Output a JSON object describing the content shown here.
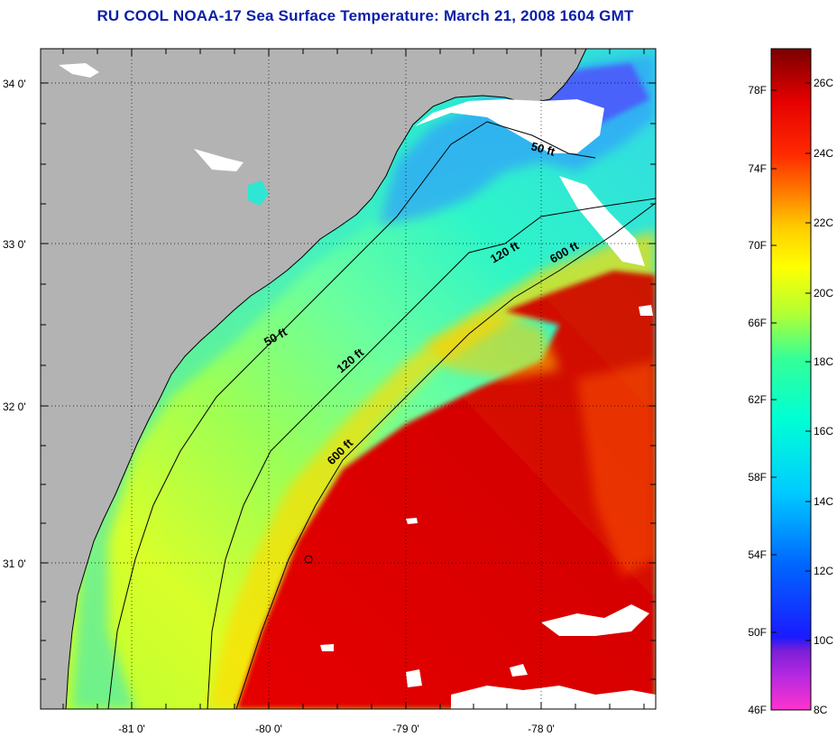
{
  "title": "RU COOL  NOAA-17  Sea Surface Temperature:  March 21, 2008 1604 GMT",
  "map": {
    "latitude_labels": [
      "34 0'",
      "33 0'",
      "32 0'",
      "31 0'"
    ],
    "longitude_labels": [
      "-81 0'",
      "-80 0'",
      "-79 0'",
      "-78 0'"
    ],
    "contour_labels": [
      "50 ft",
      "50 ft",
      "120 ft",
      "120 ft",
      "600 ft",
      "600 ft"
    ],
    "colors": {
      "land": "#b3b3b3",
      "cloud": "#ffffff",
      "coast": "#000000"
    }
  },
  "colorbar": {
    "fahrenheit_labels": [
      "78F",
      "74F",
      "70F",
      "66F",
      "62F",
      "58F",
      "54F",
      "50F",
      "46F"
    ],
    "celsius_labels": [
      "26C",
      "24C",
      "22C",
      "20C",
      "18C",
      "16C",
      "14C",
      "12C",
      "10C",
      "8C"
    ],
    "colors": [
      "#ff33cc",
      "#7a1fd6",
      "#1a1aff",
      "#0066ff",
      "#00ccff",
      "#00ffd5",
      "#33ff99",
      "#b3ff33",
      "#ffff00",
      "#ffcc00",
      "#ff8000",
      "#ff2a00",
      "#e60000",
      "#7a0000"
    ]
  }
}
